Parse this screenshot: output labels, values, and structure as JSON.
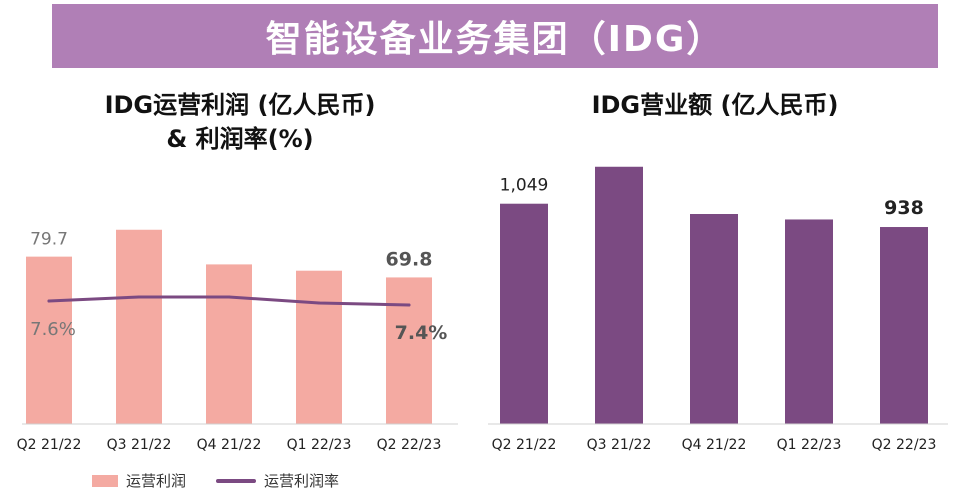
{
  "banner": {
    "title": "智能设备业务集团（IDG）"
  },
  "colors": {
    "banner": "#b07fb6",
    "profit_bar": "#f4aaa2",
    "margin_line": "#7b4a82",
    "revenue_bar": "#7b4a82"
  },
  "chart_data": [
    {
      "type": "bar",
      "title": "IDG运营利润 (亿人民币)\n& 利润率(%)",
      "title_line1": "IDG运营利润 (亿人民币)",
      "title_line2": "& 利润率(%)",
      "categories": [
        "Q2 21/22",
        "Q3 21/22",
        "Q4 21/22",
        "Q1 22/23",
        "Q2 22/23"
      ],
      "series": [
        {
          "name": "运营利润",
          "type": "bar",
          "values": [
            79.7,
            92.5,
            76.0,
            73.0,
            69.8
          ]
        },
        {
          "name": "运营利润率",
          "type": "line",
          "values": [
            7.6,
            7.8,
            7.8,
            7.5,
            7.4
          ]
        }
      ],
      "bar_labels": [
        {
          "index": 0,
          "text": "79.7"
        },
        {
          "index": 4,
          "text": "69.8"
        }
      ],
      "line_labels": [
        {
          "index": 0,
          "text": "7.6%"
        },
        {
          "index": 4,
          "text": "7.4%"
        }
      ],
      "legend": [
        "运营利润",
        "运营利润率"
      ]
    },
    {
      "type": "bar",
      "title": "IDG营业额 (亿人民币)",
      "categories": [
        "Q2 21/22",
        "Q3 21/22",
        "Q4 21/22",
        "Q1 22/23",
        "Q2 22/23"
      ],
      "series": [
        {
          "name": "营业额",
          "values": [
            1049,
            1225,
            1000,
            974,
            938
          ]
        }
      ],
      "bar_labels": [
        {
          "index": 0,
          "text": "1,049"
        },
        {
          "index": 4,
          "text": "938"
        }
      ]
    }
  ]
}
